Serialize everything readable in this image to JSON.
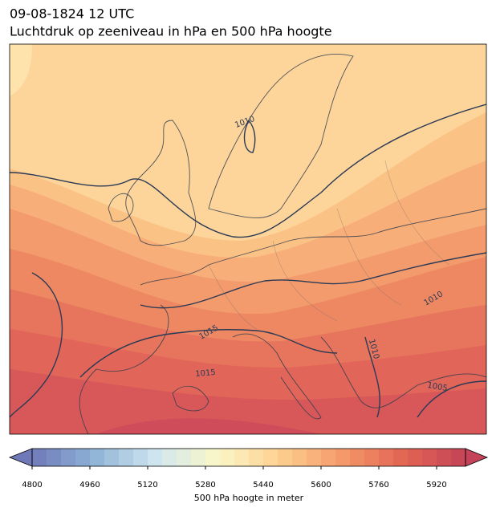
{
  "chart_data": {
    "type": "map",
    "title": "09-08-1824 12 UTC",
    "subtitle": "Luchtdruk op zeeniveau in hPa en 500 hPa hoogte",
    "contour_labels": [
      "1010",
      "1015",
      "1015",
      "1005",
      "1010",
      "1010"
    ],
    "colorbar": {
      "label": "500 hPa hoogte in meter",
      "lim": [
        4800,
        6000
      ],
      "levels": 30,
      "ticks": [
        4800,
        4960,
        5120,
        5280,
        5440,
        5600,
        5760,
        5920
      ],
      "colormap": [
        "#6f79b8",
        "#8fb3d6",
        "#cfe6f0",
        "#fbf7c8",
        "#fdd08f",
        "#f5996a",
        "#e26553",
        "#c44358"
      ]
    }
  }
}
